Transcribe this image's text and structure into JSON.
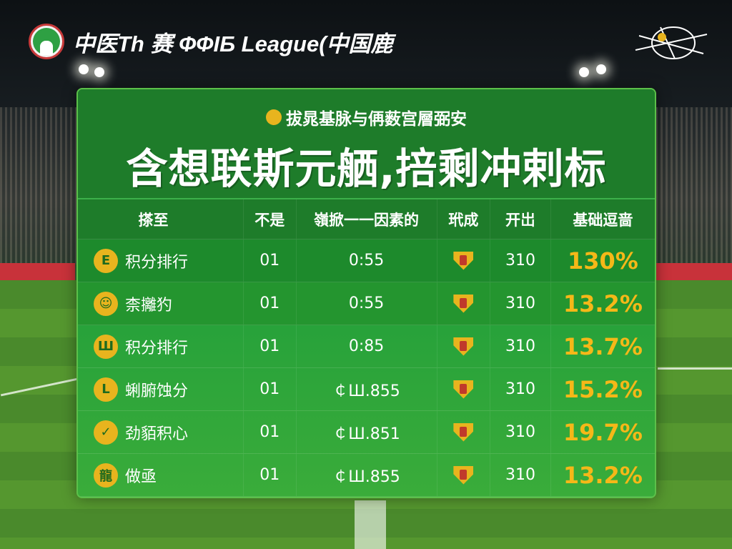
{
  "header": {
    "brand": "中医Th 赛 ФФІБ League(中国鹿",
    "logo_icon": "league-crest-icon",
    "emblem_icon": "sketch-emblem-icon"
  },
  "panel": {
    "subtitle": "拔晁基脉与侢薮宫層弼安",
    "title": "含想联斯元舾,掊剩冲剌标",
    "columns": [
      "搽至",
      "不是",
      "嶺掀一一因素的",
      "玳成",
      "开岀",
      "基础逗啬"
    ],
    "rows": [
      {
        "icon": "E",
        "name": "积分排行",
        "c2": "01",
        "c3": "0:55",
        "badge": "shield-icon",
        "c5": "310",
        "pct": "130%"
      },
      {
        "icon": "☺",
        "name": "柰攡犳",
        "c2": "01",
        "c3": "0:55",
        "badge": "shield-icon",
        "c5": "310",
        "pct": "13.2%"
      },
      {
        "icon": "Ш",
        "name": "积分排行",
        "c2": "01",
        "c3": "0:85",
        "badge": "shield-icon",
        "c5": "310",
        "pct": "13.7%"
      },
      {
        "icon": "L",
        "name": "蜊腑蚀分",
        "c2": "01",
        "c3": "￠Ш.855",
        "badge": "shield-icon",
        "c5": "310",
        "pct": "15.2%"
      },
      {
        "icon": "✓",
        "name": "劲貊积心",
        "c2": "01",
        "c3": "￠Ш.851",
        "badge": "shield-icon",
        "c5": "310",
        "pct": "19.7%"
      },
      {
        "icon": "龍",
        "name": "做亟",
        "c2": "01",
        "c3": "￠Ш.855",
        "badge": "shield-icon",
        "c5": "310",
        "pct": "13.2%"
      }
    ]
  },
  "colors": {
    "panel": "#24a03a",
    "accent": "#f5b818",
    "header": "#1e7c2a"
  }
}
